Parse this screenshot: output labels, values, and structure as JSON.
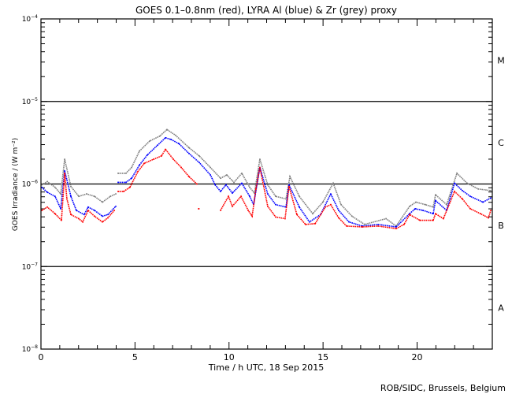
{
  "chart_data": {
    "type": "line",
    "title": "GOES 0.1–0.8nm (red), LYRA Al (blue) & Zr (grey) proxy",
    "xlabel": "Time / h UTC, 18 Sep 2015",
    "ylabel": "GOES Irradiance / (W m⁻²)",
    "credit": "ROB/SIDC, Brussels, Belgium",
    "xlim": [
      0,
      24
    ],
    "ylim_log10": [
      -8,
      -4
    ],
    "yscale": "log",
    "x_ticks": [
      {
        "value": 0,
        "label": "0"
      },
      {
        "value": 5,
        "label": "5"
      },
      {
        "value": 10,
        "label": "10"
      },
      {
        "value": 15,
        "label": "15"
      },
      {
        "value": 20,
        "label": "20"
      }
    ],
    "y_ticks": [
      {
        "value": -4,
        "base": "10",
        "exp": "−4"
      },
      {
        "value": -5,
        "base": "10",
        "exp": "−5"
      },
      {
        "value": -6,
        "base": "10",
        "exp": "−6"
      },
      {
        "value": -7,
        "base": "10",
        "exp": "−7"
      },
      {
        "value": -8,
        "base": "10",
        "exp": "−8"
      }
    ],
    "flare_classes": [
      {
        "label": "M",
        "center_log10": -4.5
      },
      {
        "label": "C",
        "center_log10": -5.5
      },
      {
        "label": "B",
        "center_log10": -6.5
      },
      {
        "label": "A",
        "center_log10": -7.5
      }
    ],
    "class_lines_log10": [
      -5,
      -6,
      -7
    ],
    "series": [
      {
        "name": "LYRA Zr proxy",
        "color": "#808080",
        "points_hour_log10": [
          [
            0.04,
            -6.01
          ],
          [
            0.34,
            -5.97
          ],
          [
            0.75,
            -6.04
          ],
          [
            1.05,
            -6.12
          ],
          [
            1.26,
            -5.7
          ],
          [
            1.59,
            -6.03
          ],
          [
            2.01,
            -6.15
          ],
          [
            2.43,
            -6.12
          ],
          [
            2.85,
            -6.15
          ],
          [
            3.27,
            -6.22
          ],
          [
            3.69,
            -6.15
          ],
          [
            3.98,
            -6.12
          ],
          null,
          [
            4.1,
            -5.87
          ],
          [
            4.52,
            -5.87
          ],
          [
            4.82,
            -5.8
          ],
          [
            5.24,
            -5.6
          ],
          [
            5.78,
            -5.48
          ],
          [
            6.32,
            -5.42
          ],
          [
            6.7,
            -5.34
          ],
          [
            7.16,
            -5.41
          ],
          [
            7.87,
            -5.56
          ],
          [
            8.42,
            -5.66
          ],
          [
            9.01,
            -5.8
          ],
          [
            9.55,
            -5.93
          ],
          [
            9.88,
            -5.89
          ],
          [
            10.26,
            -5.98
          ],
          [
            10.68,
            -5.87
          ],
          [
            11.1,
            -6.04
          ],
          [
            11.35,
            -6.11
          ],
          [
            11.64,
            -5.7
          ],
          [
            12.06,
            -6.01
          ],
          [
            12.48,
            -6.15
          ],
          [
            13.03,
            -6.18
          ],
          [
            13.24,
            -5.91
          ],
          [
            13.74,
            -6.15
          ],
          [
            14.45,
            -6.36
          ],
          [
            14.99,
            -6.22
          ],
          [
            15.54,
            -5.99
          ],
          [
            15.96,
            -6.25
          ],
          [
            16.54,
            -6.39
          ],
          [
            17.21,
            -6.49
          ],
          [
            18.35,
            -6.42
          ],
          [
            18.89,
            -6.51
          ],
          [
            19.6,
            -6.27
          ],
          [
            19.94,
            -6.22
          ],
          [
            20.44,
            -6.25
          ],
          [
            20.86,
            -6.28
          ],
          [
            20.98,
            -6.13
          ],
          [
            21.57,
            -6.25
          ],
          [
            22.12,
            -5.87
          ],
          [
            22.66,
            -5.99
          ],
          [
            23.25,
            -6.06
          ],
          [
            23.92,
            -6.08
          ]
        ]
      },
      {
        "name": "LYRA Al proxy",
        "color": "#0000ff",
        "points_hour_log10": [
          [
            0.04,
            -6.04
          ],
          [
            0.34,
            -6.1
          ],
          [
            0.75,
            -6.15
          ],
          [
            1.05,
            -6.3
          ],
          [
            1.26,
            -5.84
          ],
          [
            1.59,
            -6.15
          ],
          [
            1.88,
            -6.32
          ],
          [
            2.3,
            -6.37
          ],
          [
            2.51,
            -6.28
          ],
          [
            2.85,
            -6.32
          ],
          [
            3.27,
            -6.39
          ],
          [
            3.56,
            -6.37
          ],
          [
            3.98,
            -6.27
          ],
          null,
          [
            4.1,
            -5.98
          ],
          [
            4.52,
            -5.98
          ],
          [
            4.82,
            -5.93
          ],
          [
            5.24,
            -5.77
          ],
          [
            5.65,
            -5.65
          ],
          [
            6.2,
            -5.53
          ],
          [
            6.62,
            -5.44
          ],
          [
            6.91,
            -5.46
          ],
          [
            7.33,
            -5.51
          ],
          [
            7.87,
            -5.63
          ],
          [
            8.42,
            -5.74
          ],
          [
            9.01,
            -5.89
          ],
          [
            9.26,
            -6.01
          ],
          [
            9.55,
            -6.09
          ],
          [
            9.84,
            -6.01
          ],
          [
            10.18,
            -6.11
          ],
          [
            10.68,
            -5.99
          ],
          [
            11.1,
            -6.15
          ],
          [
            11.31,
            -6.25
          ],
          [
            11.64,
            -5.8
          ],
          [
            12.06,
            -6.12
          ],
          [
            12.48,
            -6.25
          ],
          [
            13.03,
            -6.28
          ],
          [
            13.19,
            -6.01
          ],
          [
            13.74,
            -6.28
          ],
          [
            14.28,
            -6.46
          ],
          [
            14.87,
            -6.37
          ],
          [
            15.41,
            -6.12
          ],
          [
            15.83,
            -6.32
          ],
          [
            16.38,
            -6.46
          ],
          [
            17.09,
            -6.51
          ],
          [
            17.93,
            -6.49
          ],
          [
            18.89,
            -6.52
          ],
          [
            19.6,
            -6.36
          ],
          [
            19.9,
            -6.3
          ],
          [
            20.31,
            -6.32
          ],
          [
            20.86,
            -6.36
          ],
          [
            20.98,
            -6.2
          ],
          [
            21.57,
            -6.32
          ],
          [
            21.99,
            -5.99
          ],
          [
            22.41,
            -6.08
          ],
          [
            22.83,
            -6.15
          ],
          [
            23.5,
            -6.22
          ],
          [
            23.92,
            -6.17
          ]
        ]
      },
      {
        "name": "GOES 0.1-0.8nm",
        "color": "#ff0000",
        "points_hour_log10": [
          [
            0.04,
            -6.32
          ],
          [
            0.34,
            -6.28
          ],
          [
            0.75,
            -6.36
          ],
          [
            1.09,
            -6.44
          ],
          [
            1.26,
            -5.87
          ],
          [
            1.38,
            -6.18
          ],
          [
            1.59,
            -6.37
          ],
          [
            2.01,
            -6.42
          ],
          [
            2.22,
            -6.46
          ],
          [
            2.51,
            -6.32
          ],
          [
            2.85,
            -6.39
          ],
          [
            3.27,
            -6.46
          ],
          [
            3.56,
            -6.41
          ],
          [
            3.9,
            -6.32
          ],
          null,
          [
            4.1,
            -6.09
          ],
          [
            4.4,
            -6.09
          ],
          [
            4.73,
            -6.04
          ],
          [
            5.15,
            -5.85
          ],
          [
            5.49,
            -5.75
          ],
          [
            5.99,
            -5.7
          ],
          [
            6.41,
            -5.66
          ],
          [
            6.62,
            -5.58
          ],
          [
            7.04,
            -5.7
          ],
          [
            7.46,
            -5.8
          ],
          [
            7.87,
            -5.91
          ],
          [
            8.29,
            -6.0
          ],
          null,
          [
            8.38,
            -6.3
          ],
          [
            8.4,
            -6.3
          ],
          null,
          [
            9.55,
            -6.32
          ],
          [
            9.97,
            -6.15
          ],
          [
            10.18,
            -6.27
          ],
          [
            10.64,
            -6.15
          ],
          [
            11.02,
            -6.32
          ],
          [
            11.23,
            -6.39
          ],
          [
            11.43,
            -6.06
          ],
          [
            11.64,
            -5.8
          ],
          [
            12.06,
            -6.27
          ],
          [
            12.48,
            -6.4
          ],
          [
            12.98,
            -6.42
          ],
          [
            13.19,
            -6.03
          ],
          [
            13.61,
            -6.37
          ],
          [
            14.07,
            -6.49
          ],
          [
            14.58,
            -6.48
          ],
          [
            15.12,
            -6.28
          ],
          [
            15.41,
            -6.25
          ],
          [
            15.83,
            -6.41
          ],
          [
            16.25,
            -6.51
          ],
          [
            17.09,
            -6.52
          ],
          [
            17.93,
            -6.51
          ],
          [
            18.89,
            -6.54
          ],
          [
            19.31,
            -6.49
          ],
          [
            19.6,
            -6.37
          ],
          [
            20.15,
            -6.44
          ],
          [
            20.86,
            -6.44
          ],
          [
            20.98,
            -6.36
          ],
          [
            21.4,
            -6.42
          ],
          [
            21.99,
            -6.09
          ],
          [
            22.41,
            -6.18
          ],
          [
            22.83,
            -6.3
          ],
          [
            23.37,
            -6.36
          ],
          [
            23.79,
            -6.41
          ],
          [
            23.92,
            -6.32
          ]
        ]
      }
    ]
  }
}
